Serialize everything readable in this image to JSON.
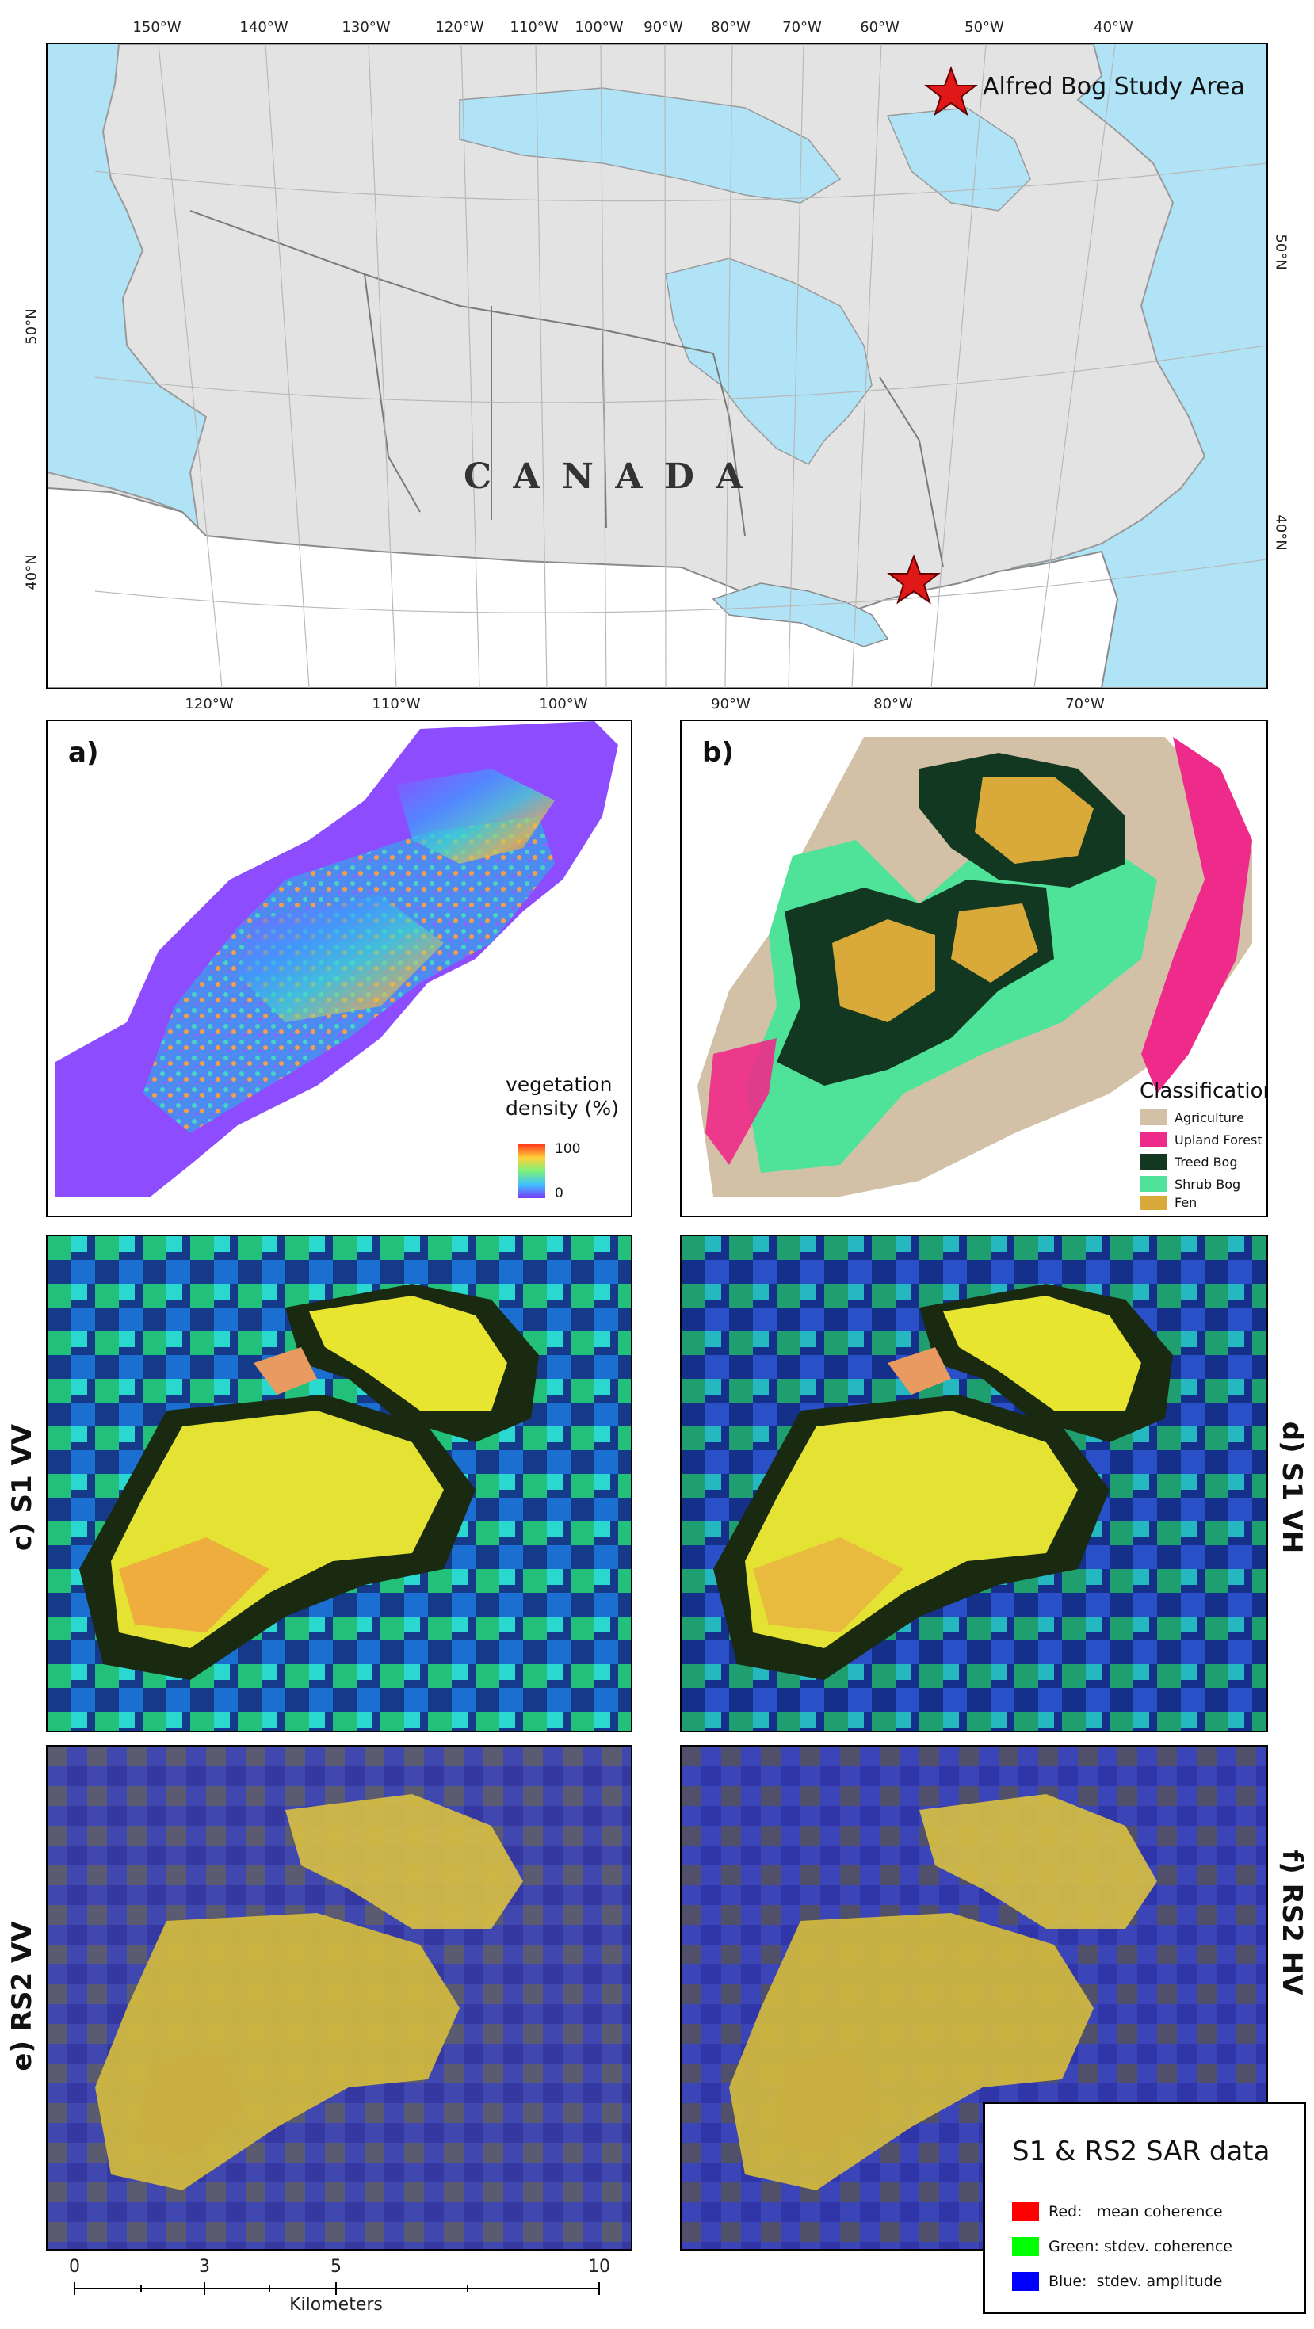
{
  "map": {
    "top_ticks": [
      "150°W",
      "140°W",
      "130°W",
      "120°W",
      "110°W",
      "100°W",
      "90°W",
      "80°W",
      "70°W",
      "60°W",
      "50°W",
      "40°W"
    ],
    "bottom_ticks": [
      "120°W",
      "110°W",
      "100°W",
      "90°W",
      "80°W",
      "70°W"
    ],
    "left_ticks": [
      "50°N",
      "40°N"
    ],
    "right_ticks": [
      "50°N",
      "40°N"
    ],
    "country_label": "C A N A D A",
    "study_area_label": "Alfred Bog Study Area"
  },
  "panels": {
    "a": {
      "label": "a)",
      "legend_title_1": "vegetation",
      "legend_title_2": "density (%)",
      "legend_max": "100",
      "legend_min": "0"
    },
    "b": {
      "label": "b)",
      "legend_title": "Classification",
      "classes": [
        {
          "name": "Agriculture",
          "color": "#d3c1a7"
        },
        {
          "name": "Upland Forest",
          "color": "#ee2a8a"
        },
        {
          "name": "Treed Bog",
          "color": "#133821"
        },
        {
          "name": "Shrub Bog",
          "color": "#4fe39a"
        },
        {
          "name": "Fen",
          "color": "#d9aa3a"
        }
      ]
    },
    "c": {
      "label": "c) S1 VV"
    },
    "d": {
      "label": "d) S1 VH"
    },
    "e": {
      "label": "e) RS2 VV"
    },
    "f": {
      "label": "f) RS2 HV"
    }
  },
  "sar_legend": {
    "title": "S1 & RS2 SAR data",
    "rows": [
      {
        "text": "Red:   mean coherence",
        "color": "#ff0000"
      },
      {
        "text": "Green: stdev. coherence",
        "color": "#00ff00"
      },
      {
        "text": "Blue:  stdev. amplitude",
        "color": "#0000ff"
      }
    ]
  },
  "scalebar": {
    "ticks": [
      "0",
      "3",
      "5",
      "10"
    ],
    "unit": "Kilometers"
  }
}
